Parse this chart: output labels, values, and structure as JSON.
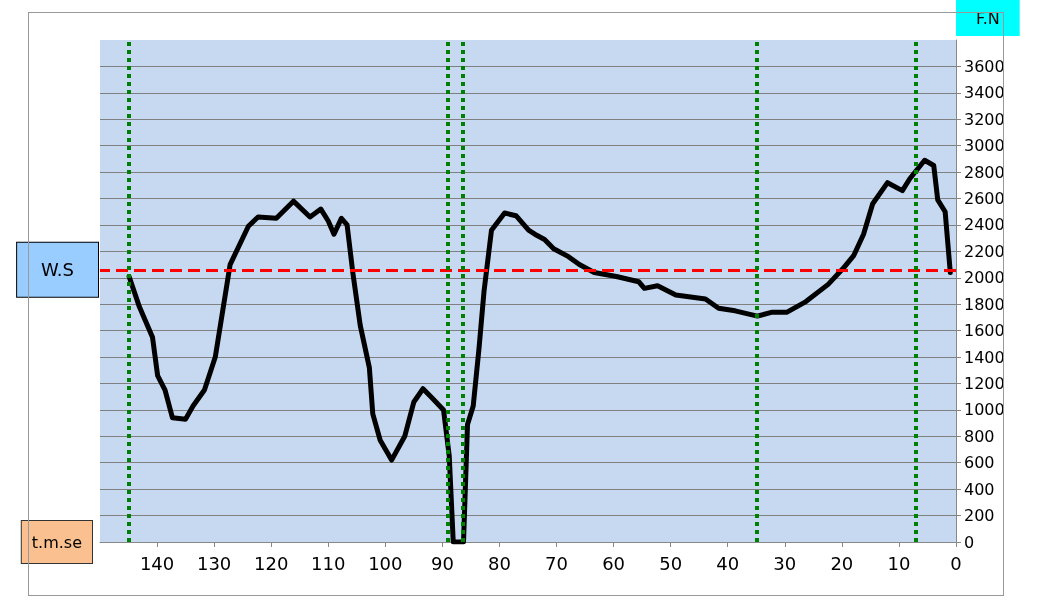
{
  "chart_data": {
    "type": "line",
    "xlabel": "t.m.se",
    "ylabel": "F.N",
    "x": [
      144.9,
      143.1,
      140.8,
      139.9,
      138.6,
      137.3,
      135.0,
      133.7,
      131.7,
      129.8,
      128.5,
      127.2,
      124.0,
      122.3,
      119.1,
      116.1,
      113.2,
      111.3,
      110.0,
      109.0,
      107.7,
      106.7,
      105.7,
      104.4,
      102.8,
      102.2,
      100.9,
      98.9,
      96.6,
      95.0,
      93.4,
      91.8,
      89.8,
      88.8,
      88.1,
      86.3,
      85.6,
      84.6,
      83.6,
      82.7,
      81.4,
      79.1,
      77.1,
      74.9,
      73.8,
      72.1,
      70.5,
      67.9,
      66.0,
      63.4,
      59.5,
      55.6,
      54.6,
      52.3,
      49.1,
      43.9,
      41.6,
      38.7,
      34.8,
      32.2,
      29.6,
      26.3,
      22.4,
      19.8,
      17.9,
      16.2,
      14.6,
      12.0,
      9.4,
      8.1,
      6.8,
      5.5,
      3.9,
      3.2,
      1.9,
      1.0
    ],
    "series": [
      {
        "color": "#000000",
        "values": [
          2010,
          1780,
          1550,
          1260,
          1150,
          940,
          930,
          1030,
          1150,
          1400,
          1750,
          2100,
          2390,
          2460,
          2450,
          2580,
          2460,
          2520,
          2430,
          2330,
          2450,
          2400,
          2040,
          1640,
          1320,
          970,
          770,
          620,
          800,
          1060,
          1160,
          1090,
          1000,
          650,
          0,
          0,
          890,
          1030,
          1460,
          1900,
          2360,
          2490,
          2470,
          2360,
          2330,
          2290,
          2220,
          2160,
          2100,
          2040,
          2010,
          1970,
          1920,
          1940,
          1870,
          1840,
          1770,
          1750,
          1710,
          1740,
          1740,
          1820,
          1950,
          2070,
          2170,
          2330,
          2560,
          2720,
          2660,
          2750,
          2820,
          2890,
          2850,
          2590,
          2500,
          2040
        ]
      }
    ],
    "xlim": [
      150,
      0
    ],
    "xticks": [
      140,
      130,
      120,
      110,
      100,
      90,
      80,
      70,
      60,
      50,
      40,
      30,
      20,
      10,
      0
    ],
    "ylim": [
      0,
      3800
    ],
    "yticks": [
      0,
      200,
      400,
      600,
      800,
      1000,
      1200,
      1400,
      1600,
      1800,
      2000,
      2200,
      2400,
      2600,
      2800,
      3000,
      3200,
      3400,
      3600
    ],
    "grid": "y",
    "marker": "none",
    "line_style": "solid",
    "ref_lines": [
      {
        "axis": "y",
        "value": 2060,
        "label": "W.S",
        "color": "#ff0000",
        "line_style": "dashed"
      },
      {
        "axis": "x",
        "value": 145,
        "label": null,
        "color": "#008000",
        "line_style": "dotted"
      },
      {
        "axis": "x",
        "value": 89,
        "label": null,
        "color": "#008000",
        "line_style": "dotted"
      },
      {
        "axis": "x",
        "value": 86.5,
        "label": null,
        "color": "#008000",
        "line_style": "dotted"
      },
      {
        "axis": "x",
        "value": 35,
        "label": null,
        "color": "#008000",
        "line_style": "dotted"
      },
      {
        "axis": "x",
        "value": 7,
        "label": null,
        "color": "#008000",
        "line_style": "dotted"
      }
    ]
  }
}
